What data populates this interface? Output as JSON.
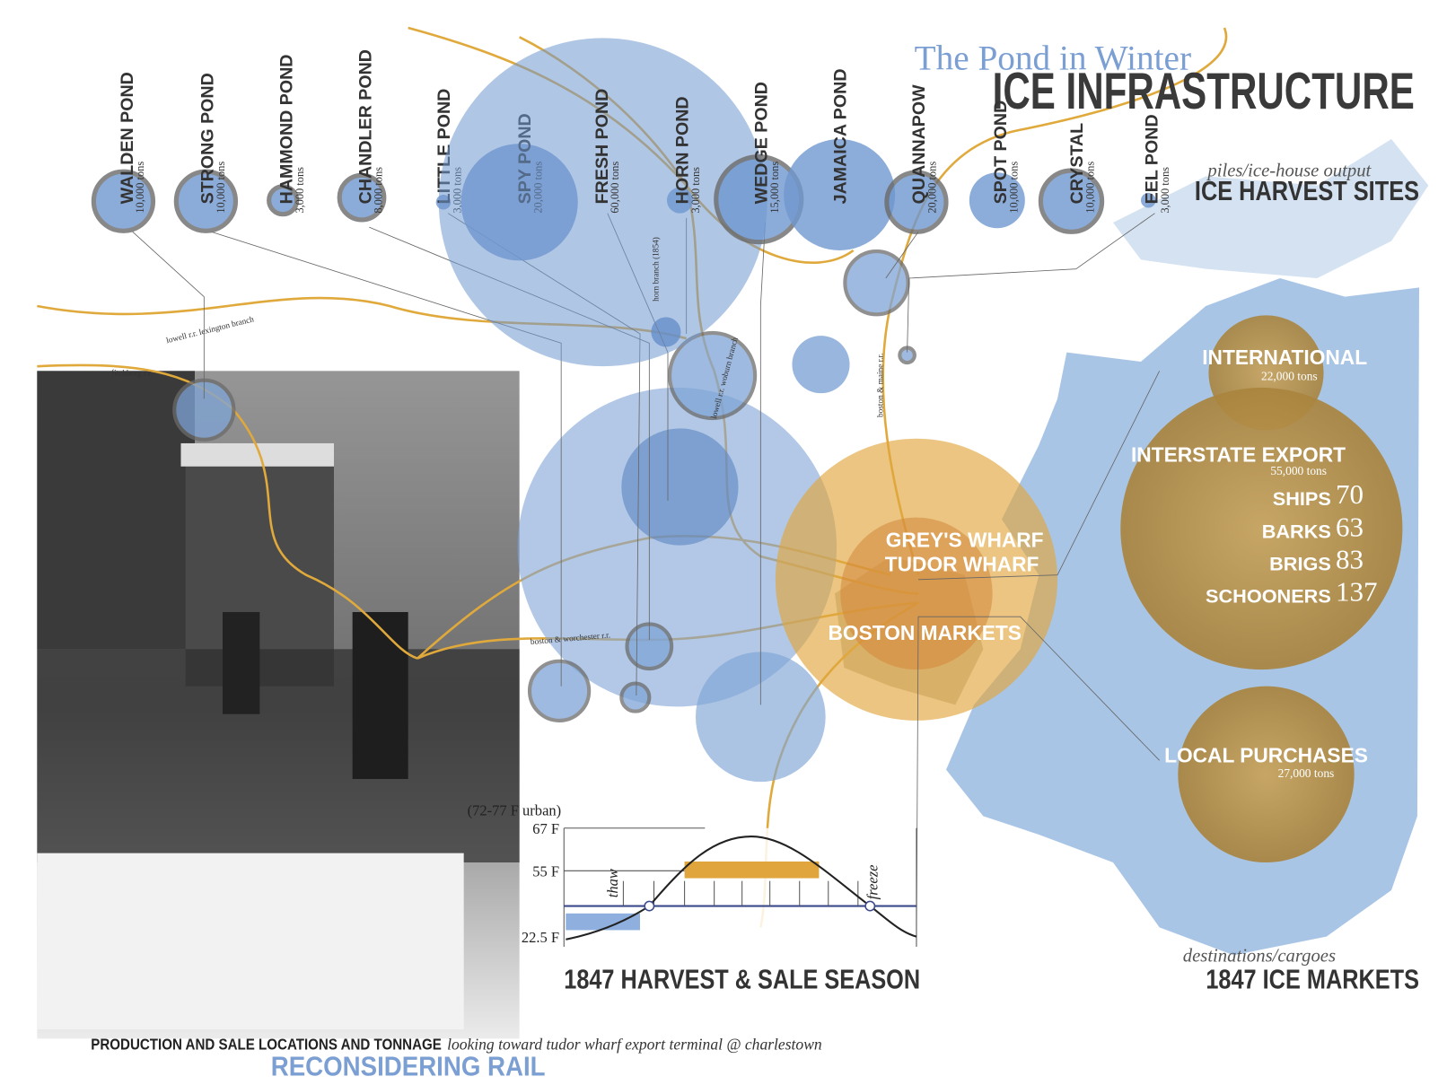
{
  "header": {
    "subtitle": "The Pond in Winter",
    "title": "ICE INFRASTRUCTURE"
  },
  "harvest": {
    "caption": "piles/ice-house output",
    "title": "ICE HARVEST SITES",
    "ponds": [
      {
        "name": "WALDEN POND",
        "tons": "10,000 tons"
      },
      {
        "name": "STRONG POND",
        "tons": "10,000 tons"
      },
      {
        "name": "HAMMOND POND",
        "tons": "3,000 tons"
      },
      {
        "name": "CHANDLER POND",
        "tons": "8,000 tons"
      },
      {
        "name": "LITTLE POND",
        "tons": "3,000 tons"
      },
      {
        "name": "SPY POND",
        "tons": "20,000 tons"
      },
      {
        "name": "FRESH POND",
        "tons": "60,000 tons"
      },
      {
        "name": "HORN POND",
        "tons": "3,000 tons"
      },
      {
        "name": "WEDGE POND",
        "tons": "15,000 tons"
      },
      {
        "name": "JAMAICA POND"
      },
      {
        "name": "QUANNAPOW",
        "tons": "20,000 tons"
      },
      {
        "name": "SPOT POND",
        "tons": "10,000 tons"
      },
      {
        "name": "CRYSTAL",
        "tons": "10,000 tons"
      },
      {
        "name": "EEL POND",
        "tons": "3,000 tons"
      }
    ]
  },
  "rail_lines": [
    "lowell r.r. lexington branch",
    "fitchburg r.r.",
    "horn branch (1854)",
    "lowell r.r. woburn branch",
    "boston & maine r.r.",
    "boston & worchester r.r."
  ],
  "boston": {
    "wharves": [
      "GREY'S WHARF",
      "TUDOR WHARF"
    ],
    "markets": "BOSTON MARKETS"
  },
  "markets": {
    "caption": "destinations/cargoes",
    "title": "1847 ICE MARKETS",
    "international": {
      "name": "INTERNATIONAL",
      "tons": "22,000 tons"
    },
    "interstate": {
      "name": "INTERSTATE EXPORT",
      "tons": "55,000 tons",
      "vessels": [
        {
          "type": "SHIPS",
          "count": 70
        },
        {
          "type": "BARKS",
          "count": 63
        },
        {
          "type": "BRIGS",
          "count": 83
        },
        {
          "type": "SCHOONERS",
          "count": 137
        }
      ]
    },
    "local": {
      "name": "LOCAL PURCHASES",
      "tons": "27,000 tons"
    }
  },
  "season": {
    "title": "1847 HARVEST & SALE SEASON",
    "urban_note": "(72-77 F urban)",
    "temps": [
      "67 F",
      "55 F",
      "22.5 F"
    ],
    "thaw": "thaw",
    "freeze": "freeze"
  },
  "footer": {
    "caption": "PRODUCTION AND SALE LOCATIONS AND TONNAGE",
    "photo_caption": "looking toward tudor wharf export terminal @ charlestown",
    "title": "RECONSIDERING RAIL"
  }
}
